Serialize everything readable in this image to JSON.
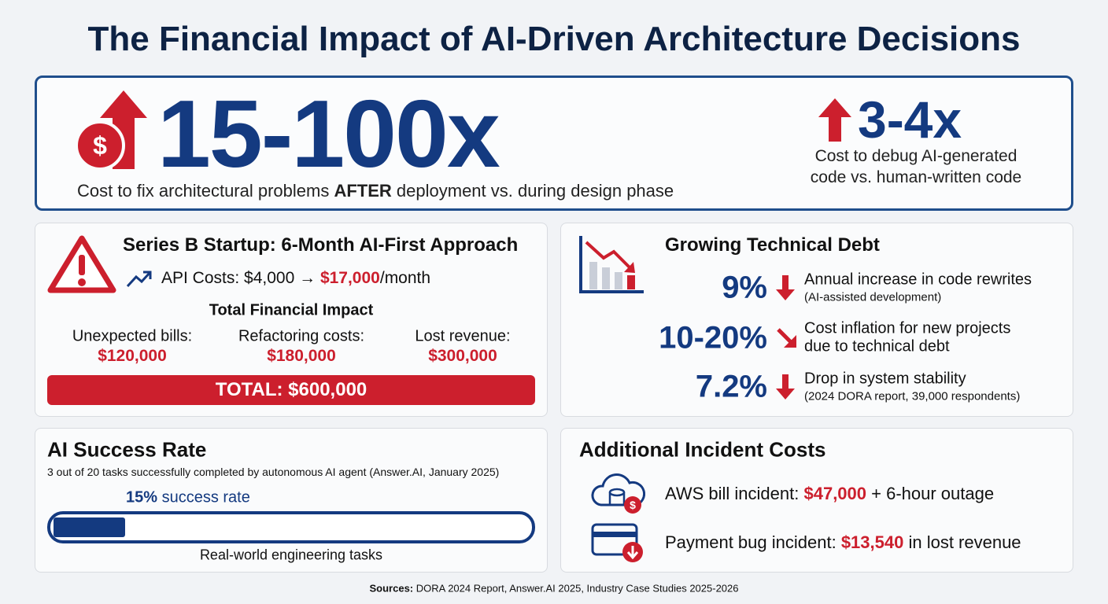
{
  "title": "The Financial Impact of AI-Driven Architecture Decisions",
  "hero": {
    "main": {
      "value": "15-100x",
      "caption": [
        "Cost to fix architectural problems ",
        "AFTER",
        " deployment vs. during design phase"
      ]
    },
    "side": {
      "value": "3-4x",
      "caption": [
        "Cost to debug AI-generated",
        "code vs. human-written code"
      ]
    }
  },
  "startup": {
    "title": "Series B Startup: 6-Month AI-First Approach",
    "api": [
      "API Costs: $4,000 → ",
      "$17,000",
      "/month"
    ],
    "impact_title": "Total Financial Impact",
    "items": [
      {
        "label": "Unexpected bills:",
        "value": "$120,000"
      },
      {
        "label": "Refactoring costs:",
        "value": "$180,000"
      },
      {
        "label": "Lost revenue:",
        "value": "$300,000"
      }
    ],
    "total": "TOTAL: $600,000"
  },
  "debt": {
    "title": "Growing Technical Debt",
    "rows": [
      {
        "value": "9%",
        "text": "Annual increase in code rewrites",
        "note": "(AI-assisted development)"
      },
      {
        "value": "10-20%",
        "text": "Cost inflation for new projects",
        "note": "due to technical debt"
      },
      {
        "value": "7.2%",
        "text": "Drop in system stability",
        "note": "(2024 DORA report, 39,000 respondents)"
      }
    ]
  },
  "success": {
    "title": "AI Success Rate",
    "subtitle": "3 out of 20 tasks successfully completed by autonomous AI agent (Answer.AI, January 2025)",
    "rate": {
      "value": 15,
      "label": "15%"
    },
    "rate_text": " success rate",
    "bar_label": "Real-world engineering tasks"
  },
  "incidents": {
    "title": "Additional Incident Costs",
    "rows": [
      [
        "AWS bill incident: ",
        "$47,000",
        " + 6-hour outage"
      ],
      [
        "Payment bug incident: ",
        "$13,540",
        " in lost revenue"
      ]
    ]
  },
  "sources": [
    "Sources:",
    " DORA 2024 Report, Answer.AI 2025, Industry Case Studies 2025-2026"
  ]
}
